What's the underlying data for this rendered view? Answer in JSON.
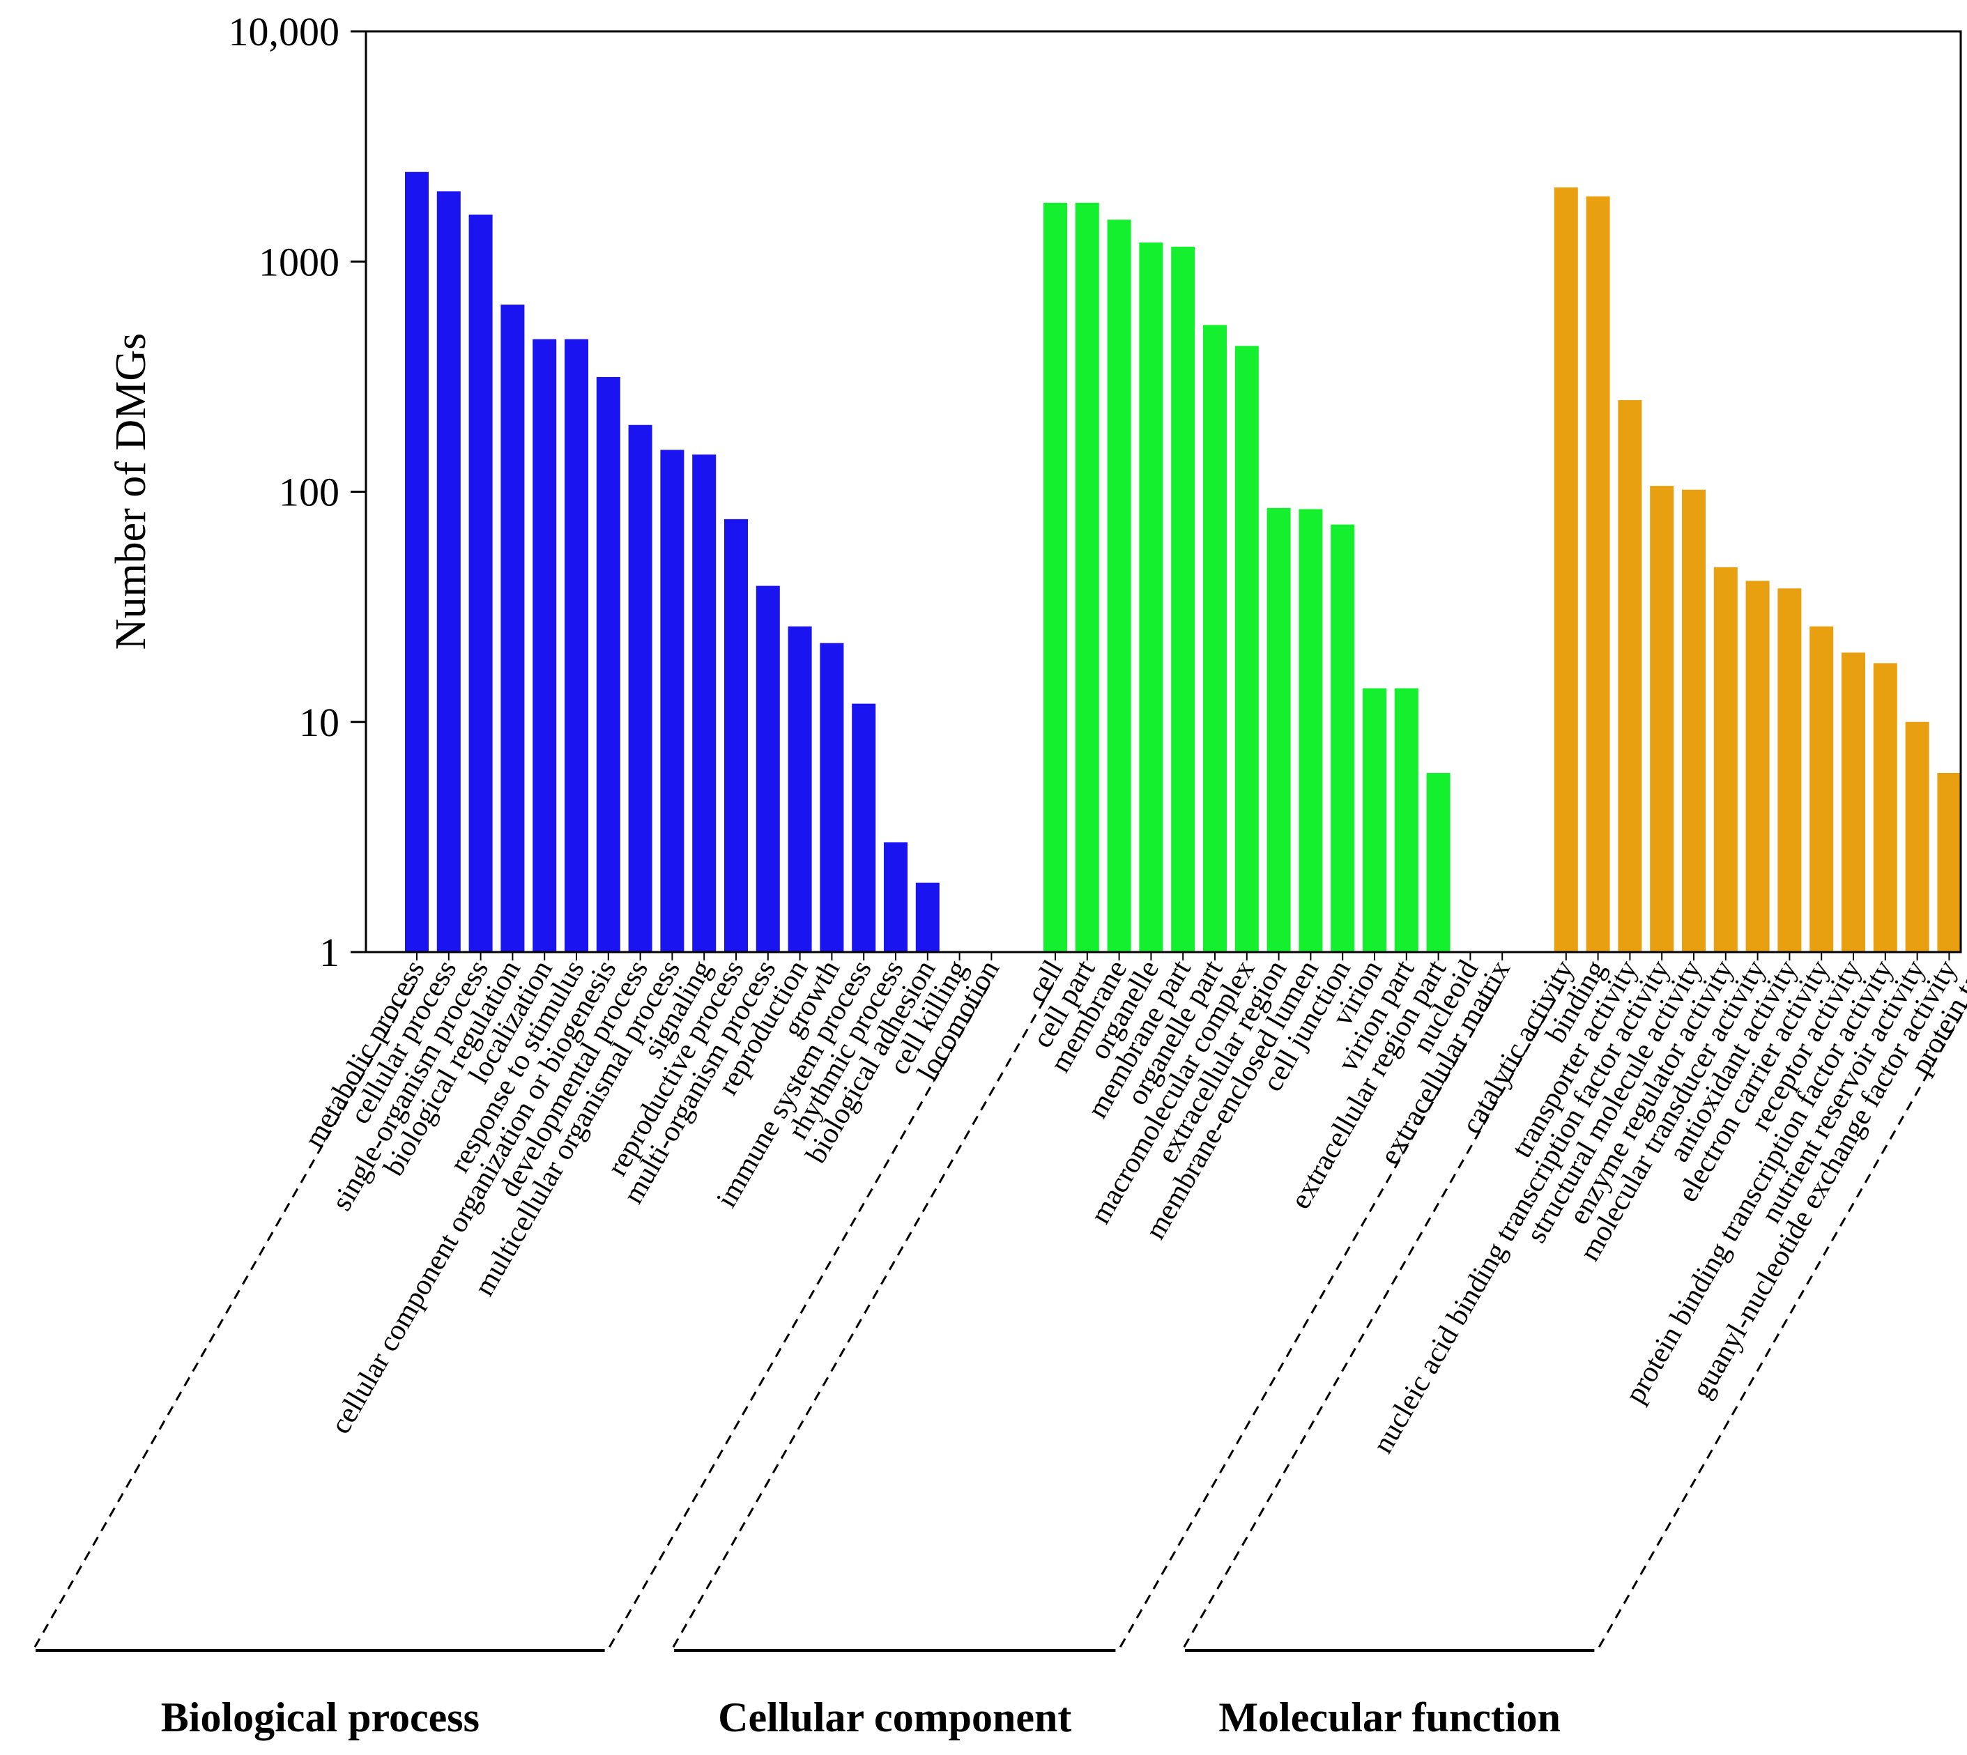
{
  "chart_data": {
    "type": "bar",
    "yscale": "log",
    "ylabel": "Number of DMGs",
    "xlabel": "",
    "ylim": [
      1,
      10000
    ],
    "yticks": [
      {
        "value": 1,
        "label": "1"
      },
      {
        "value": 10,
        "label": "10"
      },
      {
        "value": 100,
        "label": "100"
      },
      {
        "value": 1000,
        "label": "1000"
      },
      {
        "value": 10000,
        "label": "10,000"
      }
    ],
    "groups": [
      {
        "name": "Biological process",
        "color": "#1a14f0",
        "categories": [
          "metabolic process",
          "cellular process",
          "single-organism process",
          "biological regulation",
          "localization",
          "response to stimulus",
          "cellular component organization or biogenesis",
          "developmental process",
          "multicellular organismal process",
          "signaling",
          "reproductive process",
          "multi-organism process",
          "reproduction",
          "growth",
          "immune system process",
          "rhythmic process",
          "biological adhesion",
          "cell killing",
          "locomotion"
        ],
        "values": [
          2450,
          2020,
          1600,
          650,
          460,
          460,
          315,
          195,
          152,
          145,
          76,
          39,
          26,
          22,
          12,
          3,
          2,
          1,
          1
        ]
      },
      {
        "name": "Cellular component",
        "color": "#14f02e",
        "categories": [
          "cell",
          "cell part",
          "membrane",
          "organelle",
          "membrane part",
          "organelle part",
          "macromolecular complex",
          "extracellular region",
          "membrane-enclosed lumen",
          "cell junction",
          "virion",
          "virion part",
          "extracellular region part",
          "nucleoid",
          "extracellular matrix"
        ],
        "values": [
          1800,
          1800,
          1520,
          1210,
          1160,
          530,
          430,
          85,
          84,
          72,
          14,
          14,
          6,
          1,
          1
        ]
      },
      {
        "name": "Molecular function",
        "color": "#e8a010",
        "categories": [
          "catalytic activity",
          "binding",
          "transporter activity",
          "nucleic acid binding transcription factor activity",
          "structural molecule activity",
          "enzyme regulator activity",
          "molecular transducer activity",
          "antioxidant activity",
          "electron carrier activity",
          "receptor activity",
          "protein binding transcription factor activity",
          "nutrient reservoir activity",
          "guanyl-nucleotide exchange factor activity",
          "protein tag"
        ],
        "values": [
          2100,
          1920,
          250,
          106,
          102,
          47,
          41,
          38,
          26,
          20,
          18,
          10,
          6,
          1
        ]
      }
    ]
  }
}
